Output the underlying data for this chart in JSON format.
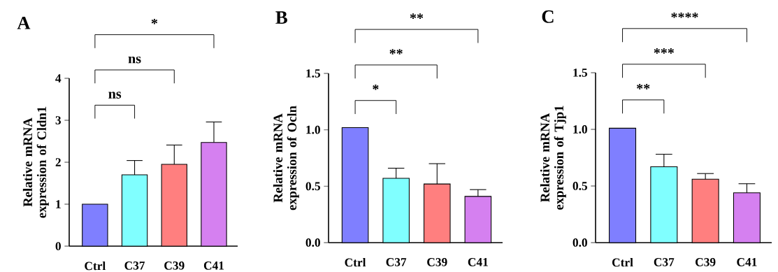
{
  "chart_data": [
    {
      "type": "bar",
      "title": "A",
      "ylabel": "Relative mRNA expression of Cldn1",
      "categories": [
        "Ctrl",
        "C37",
        "C39",
        "C41"
      ],
      "values": [
        1.0,
        1.7,
        1.95,
        2.47
      ],
      "colors": [
        "#7f7fff",
        "#80ffff",
        "#ff7f7f",
        "#d580f0"
      ],
      "errors": [
        null,
        [
          1.7,
          2.04
        ],
        [
          1.95,
          2.41
        ],
        [
          2.47,
          2.96
        ]
      ],
      "ylim": [
        0,
        4
      ],
      "yticks": [
        0,
        1,
        2,
        3,
        4
      ],
      "annotations": [
        "ns",
        "ns",
        "*"
      ]
    },
    {
      "type": "bar",
      "title": "B",
      "ylabel": "Relative mRNA expression of Ocln",
      "categories": [
        "Ctrl",
        "C37",
        "C39",
        "C41"
      ],
      "values": [
        1.02,
        0.57,
        0.52,
        0.41
      ],
      "colors": [
        "#7f7fff",
        "#80ffff",
        "#ff7f7f",
        "#d580f0"
      ],
      "errors": [
        null,
        [
          0.57,
          0.66
        ],
        [
          0.52,
          0.7
        ],
        [
          0.41,
          0.47
        ]
      ],
      "ylim": [
        0,
        1.5
      ],
      "yticks": [
        {
          "value": 0,
          "label": "0.0"
        },
        {
          "value": 0.5,
          "label": "0.5"
        },
        {
          "value": 1,
          "label": "1.0"
        },
        {
          "value": 1.5,
          "label": "1.5"
        }
      ],
      "annotations": [
        "*",
        "**",
        "**"
      ]
    },
    {
      "type": "bar",
      "title": "C",
      "ylabel": "Relative mRNA expression of Tjp1",
      "categories": [
        "Ctrl",
        "C37",
        "C39",
        "C41"
      ],
      "values": [
        1.01,
        0.67,
        0.56,
        0.44
      ],
      "colors": [
        "#7f7fff",
        "#80ffff",
        "#ff7f7f",
        "#d580f0"
      ],
      "errors": [
        null,
        [
          0.67,
          0.78
        ],
        [
          0.56,
          0.61
        ],
        [
          0.44,
          0.52
        ]
      ],
      "ylim": [
        0,
        1.5
      ],
      "yticks": [
        {
          "value": 0,
          "label": "0.0"
        },
        {
          "value": 0.5,
          "label": "0.5"
        },
        {
          "value": 1,
          "label": "1.0"
        },
        {
          "value": 1.5,
          "label": "1.5"
        }
      ],
      "annotations": [
        "**",
        "***",
        "****"
      ]
    }
  ]
}
